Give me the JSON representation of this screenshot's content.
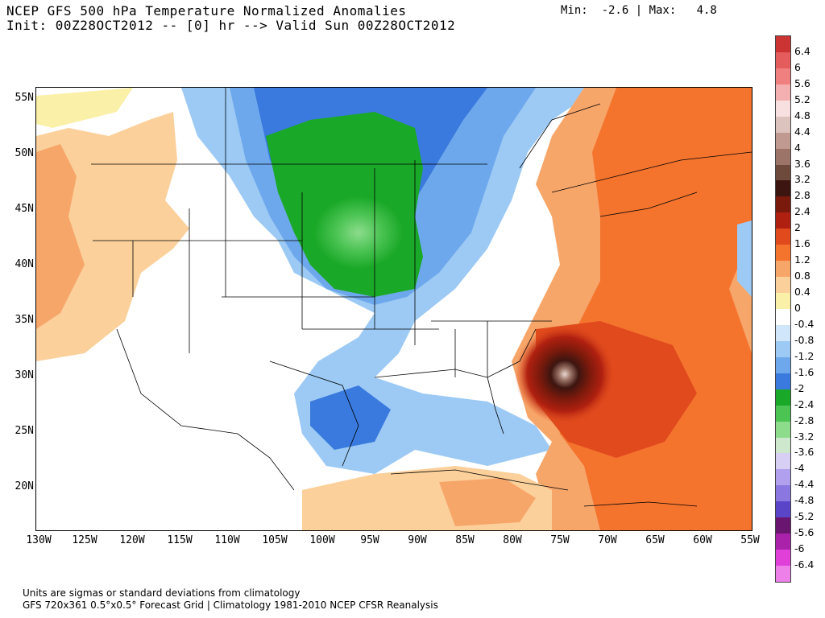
{
  "header": {
    "title_line1": "NCEP GFS 500 hPa Temperature Normalized Anomalies",
    "title_line2": "Init: 00Z28OCT2012 -- [0] hr --> Valid Sun 00Z28OCT2012",
    "minmax": "Min:  -2.6 | Max:   4.8"
  },
  "map": {
    "lat_labels": [
      "55N",
      "50N",
      "45N",
      "40N",
      "35N",
      "30N",
      "25N",
      "20N"
    ],
    "lon_labels": [
      "130W",
      "125W",
      "120W",
      "115W",
      "110W",
      "105W",
      "100W",
      "95W",
      "90W",
      "85W",
      "80W",
      "75W",
      "70W",
      "65W",
      "60W",
      "55W"
    ],
    "extent": {
      "lon_min": -130,
      "lon_max": -55,
      "lat_min": 16,
      "lat_max": 56
    }
  },
  "colorbar": {
    "levels": [
      "6.4",
      "6",
      "5.6",
      "5.2",
      "4.8",
      "4.4",
      "4",
      "3.6",
      "3.2",
      "2.8",
      "2.4",
      "2",
      "1.6",
      "1.2",
      "0.8",
      "0.4",
      "0",
      "-0.4",
      "-0.8",
      "-1.2",
      "-1.6",
      "-2",
      "-2.4",
      "-2.8",
      "-3.2",
      "-3.6",
      "-4",
      "-4.4",
      "-4.8",
      "-5.2",
      "-5.6",
      "-6",
      "-6.4"
    ],
    "colors": [
      "#cc3333",
      "#e55c5c",
      "#f08080",
      "#f4b0b0",
      "#f8e0e0",
      "#ddc3bd",
      "#c09a90",
      "#9c7568",
      "#6e4a3c",
      "#3d1510",
      "#7a1a0c",
      "#b02010",
      "#e04a1c",
      "#f4742e",
      "#f7a66a",
      "#fbd09a",
      "#fbf0a8",
      "#ffffff",
      "#cfe6fb",
      "#9ccaf4",
      "#6ea8ec",
      "#3a7ade",
      "#1aa828",
      "#4cc454",
      "#8cdc8c",
      "#cde8cd",
      "#d8d0f4",
      "#b0a0ee",
      "#8a78e0",
      "#5a44c8",
      "#6a1670",
      "#aa22aa",
      "#e040d8",
      "#ee80ea"
    ]
  },
  "footer": {
    "line1": "Units are sigmas or standard deviations from climatology",
    "line2": "GFS 720x361 0.5°x0.5° Forecast Grid | Climatology 1981-2010 NCEP CFSR Reanalysis"
  }
}
